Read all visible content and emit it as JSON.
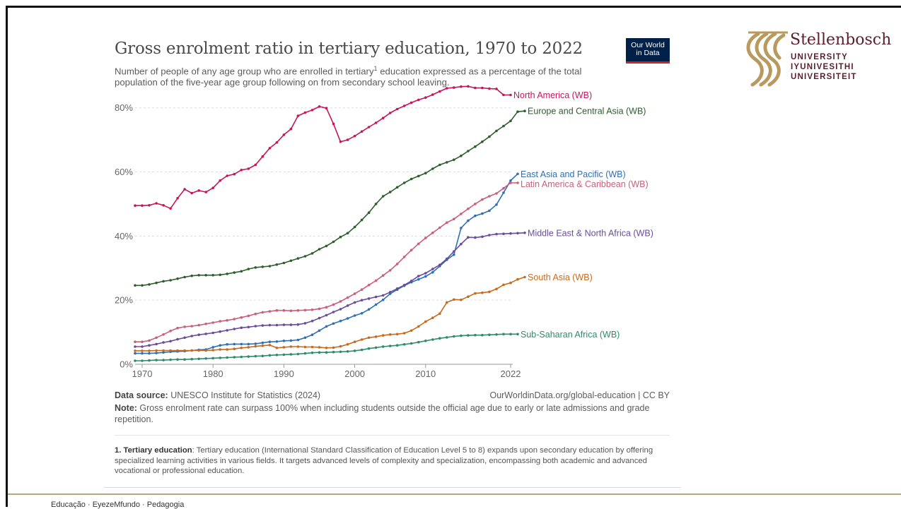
{
  "chart_data": {
    "type": "line",
    "title": "Gross enrolment ratio in tertiary education, 1970 to 2022",
    "subtitle_before": "Number of people of any age group who are enrolled in  tertiary",
    "subtitle_sup": "1",
    "subtitle_after": " education expressed as a percentage of the total population of the five-year age group following on from secondary school leaving.",
    "xlabel": "",
    "ylabel": "",
    "xlim": [
      1969,
      2022.3
    ],
    "ylim": [
      0,
      85
    ],
    "x_ticks": [
      1970,
      1980,
      1990,
      2000,
      2010,
      2022
    ],
    "x_tick_labels": [
      "1970",
      "1980",
      "1990",
      "2000",
      "2010",
      "2022"
    ],
    "y_ticks": [
      0,
      20,
      40,
      60,
      80
    ],
    "y_tick_labels": [
      "0%",
      "20%",
      "40%",
      "60%",
      "80%"
    ],
    "grid": "horizontal dashed",
    "legend": "inline labels at right end of lines",
    "series": [
      {
        "name": "North America (WB)",
        "color": "#c2185b",
        "start": 1969,
        "values": [
          49.5,
          49.5,
          49.6,
          50.2,
          49.6,
          48.6,
          51.8,
          54.6,
          53.4,
          54.2,
          53.7,
          55.0,
          57.3,
          58.8,
          59.3,
          60.6,
          61.0,
          62.2,
          64.8,
          67.4,
          69.2,
          71.6,
          73.4,
          77.5,
          78.5,
          79.3,
          80.4,
          79.9,
          75.0,
          69.4,
          70.0,
          71.2,
          72.6,
          74.0,
          75.3,
          76.8,
          78.4,
          79.6,
          80.6,
          81.6,
          82.5,
          83.2,
          84.1,
          85.1,
          86.1,
          86.3,
          86.6,
          86.7,
          86.2,
          86.2,
          86.0,
          85.9,
          84.0,
          84.0
        ]
      },
      {
        "name": "Europe and Central Asia (WB)",
        "color": "#2e5e2e",
        "start": 1969,
        "values": [
          24.6,
          24.6,
          24.9,
          25.4,
          25.9,
          26.2,
          26.7,
          27.2,
          27.6,
          27.8,
          27.8,
          27.8,
          27.9,
          28.2,
          28.6,
          29.0,
          29.7,
          30.2,
          30.4,
          30.6,
          31.1,
          31.6,
          32.3,
          33.0,
          33.7,
          34.6,
          35.9,
          36.9,
          38.2,
          39.7,
          40.9,
          42.8,
          45.0,
          47.3,
          50.0,
          52.4,
          53.7,
          55.2,
          56.6,
          57.8,
          58.7,
          59.6,
          61.0,
          62.2,
          63.0,
          63.8,
          65.0,
          66.5,
          67.9,
          69.4,
          71.0,
          72.8,
          74.3,
          75.9,
          78.8,
          79.0
        ]
      },
      {
        "name": "East Asia and Pacific (WB)",
        "color": "#2f6fb3",
        "start": 1969,
        "values": [
          3.4,
          3.4,
          3.4,
          3.5,
          3.7,
          3.9,
          4.0,
          4.1,
          4.3,
          4.5,
          4.6,
          5.3,
          5.9,
          6.2,
          6.3,
          6.3,
          6.3,
          6.4,
          6.7,
          7.0,
          7.1,
          7.3,
          7.4,
          7.6,
          8.3,
          9.2,
          10.5,
          11.8,
          12.7,
          13.5,
          14.3,
          15.2,
          15.9,
          17.1,
          18.6,
          20.1,
          22.0,
          23.3,
          24.5,
          25.6,
          26.5,
          27.4,
          28.7,
          30.6,
          32.6,
          34.2,
          42.5,
          44.8,
          46.3,
          47.0,
          47.9,
          49.8,
          53.5,
          57.3,
          59.4
        ]
      },
      {
        "name": "Latin America & Caribbean (WB)",
        "color": "#c85f7b",
        "start": 1969,
        "values": [
          7.0,
          7.0,
          7.4,
          8.3,
          9.3,
          10.4,
          11.3,
          11.7,
          11.9,
          12.2,
          12.6,
          13.0,
          13.4,
          13.7,
          14.1,
          14.6,
          15.1,
          15.7,
          16.2,
          16.5,
          16.8,
          16.8,
          16.7,
          16.8,
          16.9,
          17.0,
          17.3,
          17.8,
          18.6,
          19.6,
          20.8,
          22.0,
          23.3,
          24.7,
          26.1,
          27.7,
          29.3,
          31.3,
          33.5,
          35.6,
          37.6,
          39.4,
          41.0,
          42.6,
          44.2,
          45.3,
          46.9,
          48.5,
          50.0,
          51.4,
          52.4,
          53.3,
          54.9,
          56.6,
          56.6
        ]
      },
      {
        "name": "Middle East & North Africa (WB)",
        "color": "#6a4c9c",
        "start": 1969,
        "values": [
          5.5,
          5.5,
          5.9,
          6.3,
          6.8,
          7.2,
          7.8,
          8.3,
          8.8,
          9.2,
          9.5,
          9.8,
          10.2,
          10.6,
          11.0,
          11.4,
          11.6,
          11.9,
          12.1,
          12.2,
          12.2,
          12.3,
          12.3,
          12.4,
          12.8,
          13.5,
          14.4,
          15.3,
          16.3,
          17.2,
          18.3,
          19.3,
          20.0,
          20.5,
          21.0,
          21.5,
          22.5,
          23.6,
          24.7,
          26.0,
          27.5,
          28.4,
          29.7,
          31.0,
          32.9,
          35.2,
          37.5,
          39.6,
          39.5,
          39.8,
          40.3,
          40.6,
          40.7,
          40.8,
          40.9,
          41.0
        ]
      },
      {
        "name": "South Asia (WB)",
        "color": "#c86a1e",
        "start": 1969,
        "values": [
          4.2,
          4.2,
          4.2,
          4.3,
          4.3,
          4.3,
          4.3,
          4.3,
          4.3,
          4.3,
          4.3,
          4.4,
          4.6,
          4.6,
          4.8,
          5.1,
          5.3,
          5.6,
          5.8,
          6.0,
          5.1,
          5.3,
          5.5,
          5.5,
          5.4,
          5.4,
          5.3,
          5.1,
          5.2,
          5.6,
          6.2,
          7.0,
          7.7,
          8.3,
          8.6,
          9.0,
          9.3,
          9.4,
          9.7,
          10.5,
          11.8,
          13.3,
          14.5,
          15.8,
          19.3,
          20.2,
          20.1,
          21.1,
          22.1,
          22.3,
          22.6,
          23.5,
          24.8,
          25.4,
          26.5,
          27.2
        ]
      },
      {
        "name": "Sub-Saharan Africa (WB)",
        "color": "#2e8b6b",
        "start": 1969,
        "values": [
          1.1,
          1.1,
          1.2,
          1.3,
          1.3,
          1.4,
          1.5,
          1.5,
          1.6,
          1.7,
          1.8,
          1.9,
          2.0,
          2.1,
          2.2,
          2.3,
          2.4,
          2.5,
          2.6,
          2.8,
          2.9,
          3.0,
          3.1,
          3.2,
          3.4,
          3.6,
          3.7,
          3.7,
          3.8,
          3.9,
          4.0,
          4.2,
          4.5,
          4.9,
          5.2,
          5.5,
          5.7,
          5.9,
          6.2,
          6.5,
          6.9,
          7.3,
          7.7,
          8.1,
          8.4,
          8.7,
          8.9,
          9.0,
          9.1,
          9.1,
          9.2,
          9.3,
          9.4,
          9.4,
          9.4
        ]
      }
    ]
  },
  "source": {
    "label": "Data source:",
    "text": " UNESCO Institute for Statistics (2024)"
  },
  "credit": "OurWorldinData.org/global-education | CC BY",
  "note": {
    "label": "Note:",
    "text": " Gross enrolment rate can surpass 100% when including students outside the official age due to early or late admissions and grade repetition."
  },
  "footnote": {
    "label": "1. Tertiary education",
    "text": ": Tertiary education (International Standard Classification of Education Level 5 to 8) expands upon secondary education by offering specialized learning activities in various fields. It targets advanced levels of complexity and specialization, encompassing both academic and advanced vocational or professional education."
  },
  "owid_logo": [
    "Our World",
    "in Data"
  ],
  "university": {
    "name": "Stellenbosch",
    "lines": [
      "UNIVERSITY",
      "IYUNIVESITHI",
      "UNIVERSITEIT"
    ],
    "color": "#5a1f2e",
    "mark_color": "#b89a5e"
  },
  "footer": "Educação · EyezeMfundo · Pedagogia"
}
